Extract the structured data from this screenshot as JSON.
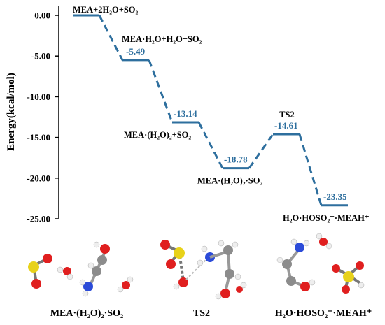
{
  "colors": {
    "line": "#2e6f9e",
    "atom_S": "#e8d21a",
    "atom_O": "#e01f1f",
    "atom_N": "#2b4bd8",
    "atom_C": "#8c8c8c",
    "atom_H": "#f2f2f2"
  },
  "chart_data": {
    "type": "line",
    "subtype": "energy-profile",
    "ylabel": "Energy(kcal/mol)",
    "xlabel": "",
    "title": "",
    "ylim": [
      -25.0,
      0.0
    ],
    "yticks": [
      "0.00",
      "-5.00",
      "-10.00",
      "-15.00",
      "-20.00",
      "-25.00"
    ],
    "grid": false,
    "states": [
      {
        "label": "MEA+2H₂O+SO₂",
        "value": 0.0,
        "value_label": ""
      },
      {
        "label": "MEA·H₂O+H₂O+SO₂",
        "value": -5.49,
        "value_label": "-5.49"
      },
      {
        "label": "MEA·(H₂O)₂+SO₂",
        "value": -13.14,
        "value_label": "-13.14"
      },
      {
        "label": "MEA·(H₂O)₂·SO₂",
        "value": -18.78,
        "value_label": "-18.78"
      },
      {
        "label": "TS2",
        "value": -14.61,
        "value_label": "-14.61"
      },
      {
        "label": "H₂O·HOSO₂⁻·MEAH⁺",
        "value": -23.35,
        "value_label": "-23.35"
      }
    ]
  },
  "molecules": [
    {
      "label": "MEA·(H₂O)₂·SO₂",
      "icon": "molecule-ball-stick-icon"
    },
    {
      "label": "TS2",
      "icon": "molecule-ball-stick-icon"
    },
    {
      "label": "H₂O·HOSO₂⁻·MEAH⁺",
      "icon": "molecule-ball-stick-icon"
    }
  ]
}
